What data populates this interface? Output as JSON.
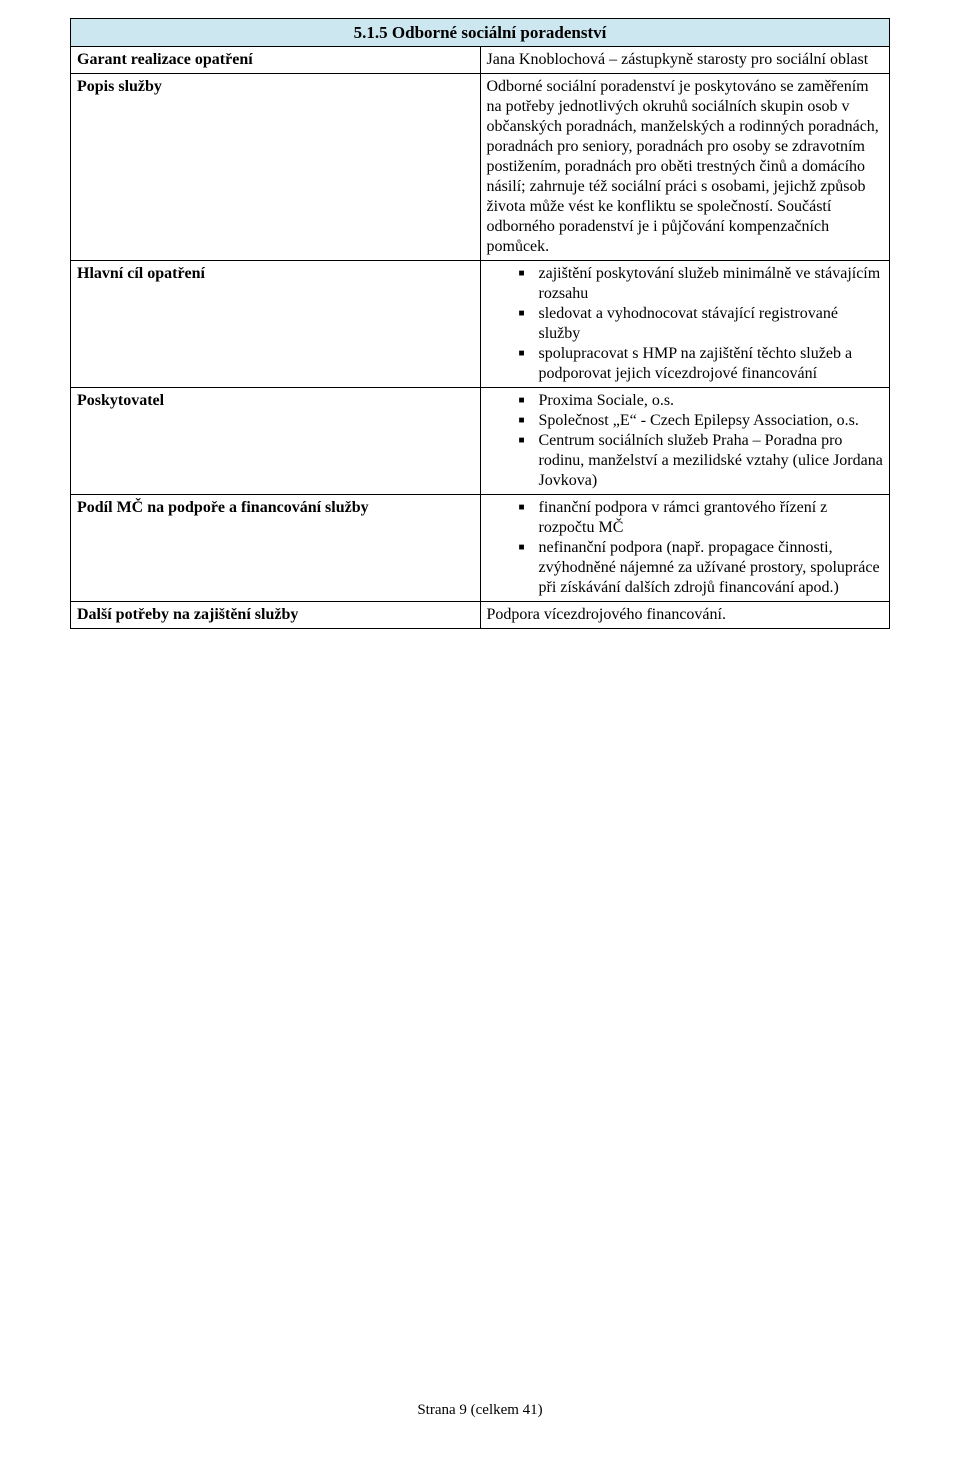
{
  "section": {
    "title": "5.1.5 Odborné sociální poradenství"
  },
  "rows": {
    "garant": {
      "label": "Garant realizace opatření",
      "value": "Jana Knoblochová – zástupkyně starosty pro sociální oblast"
    },
    "popis": {
      "label": "Popis služby",
      "value": "Odborné sociální poradenství je poskytováno se zaměřením na potřeby jednotlivých okruhů sociálních skupin osob v občanských poradnách, manželských a rodinných poradnách, poradnách pro seniory, poradnách pro osoby se zdravotním postižením, poradnách pro oběti trestných činů a domácího násilí; zahrnuje též sociální práci s osobami, jejichž způsob života může vést ke konfliktu se společností. Součástí odborného poradenství je i půjčování kompenzačních pomůcek."
    },
    "cil": {
      "label": "Hlavní cíl opatření",
      "items": [
        "zajištění poskytování služeb minimálně ve stávajícím rozsahu",
        "sledovat a vyhodnocovat stávající registrované služby",
        "spolupracovat s HMP na zajištění těchto služeb a podporovat jejich vícezdrojové financování"
      ]
    },
    "poskytovatel": {
      "label": "Poskytovatel",
      "items": [
        "Proxima Sociale, o.s.",
        "Společnost „E“ - Czech Epilepsy Association, o.s.",
        "Centrum sociálních služeb Praha – Poradna pro rodinu, manželství a mezilidské vztahy (ulice Jordana Jovkova)"
      ]
    },
    "podil": {
      "label": "Podíl MČ na podpoře a financování služby",
      "items": [
        "finanční podpora v rámci grantového řízení z rozpočtu MČ",
        "nefinanční podpora (např. propagace činnosti, zvýhodněné nájemné za užívané prostory, spolupráce při získávání dalších zdrojů financování apod.)"
      ]
    },
    "dalsi": {
      "label": "Další potřeby na zajištění služby",
      "value": "Podpora vícezdrojového financování."
    }
  },
  "footer": "Strana 9 (celkem 41)"
}
